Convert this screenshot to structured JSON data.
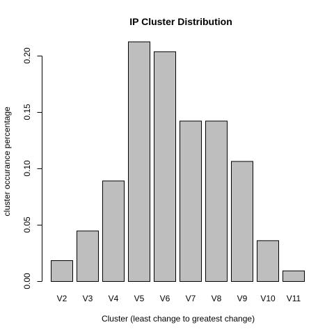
{
  "chart_data": {
    "type": "bar",
    "title": "IP Cluster Distribution",
    "xlabel": "Cluster (least change to greatest change)",
    "ylabel": "cluster occurance percentage",
    "categories": [
      "V2",
      "V3",
      "V4",
      "V5",
      "V6",
      "V7",
      "V8",
      "V9",
      "V10",
      "V11"
    ],
    "values": [
      0.0185,
      0.0448,
      0.0892,
      0.2126,
      0.2038,
      0.1423,
      0.1423,
      0.1065,
      0.0362,
      0.0094
    ],
    "ylim": [
      0,
      0.22
    ],
    "yticks": [
      "0.00",
      "0.05",
      "0.10",
      "0.15",
      "0.20"
    ],
    "bar_color": "#bebebe",
    "grid": false,
    "legend": "none"
  }
}
